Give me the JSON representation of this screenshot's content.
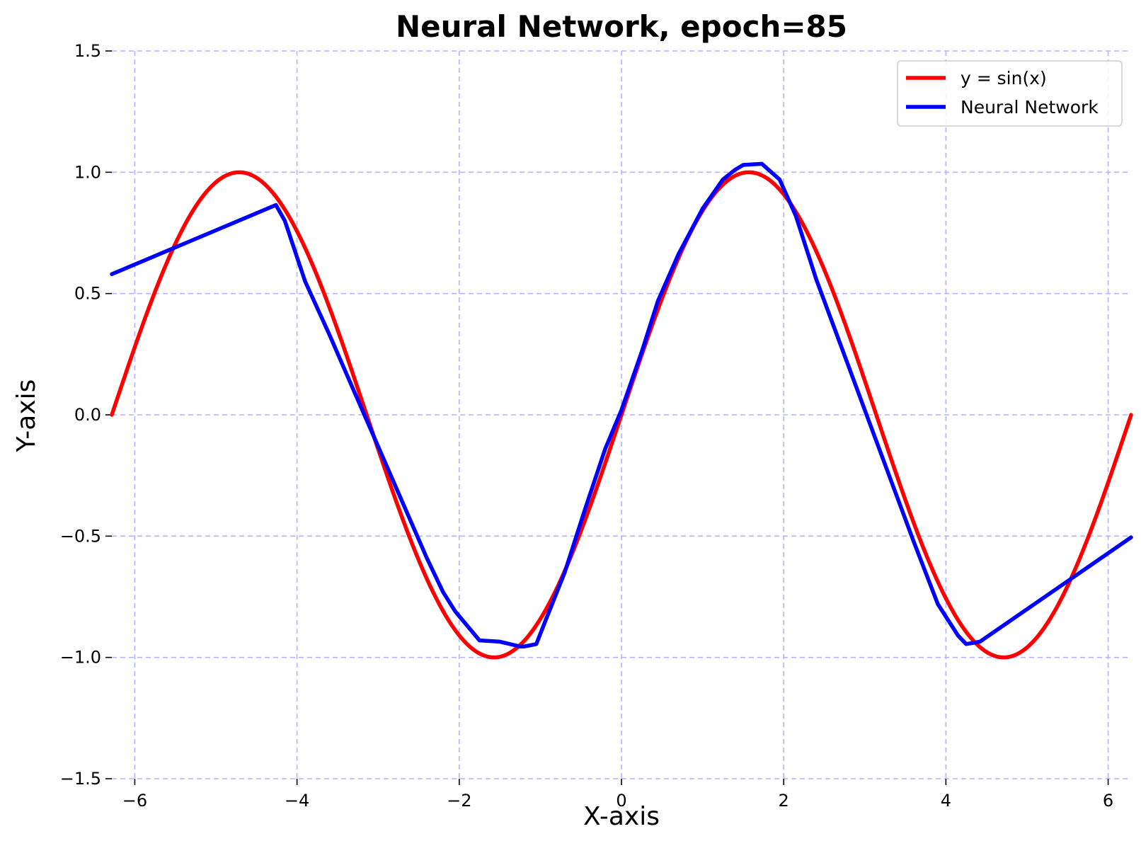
{
  "chart_data": {
    "type": "line",
    "title": "Neural Network, epoch=85",
    "xlabel": "X-axis",
    "ylabel": "Y-axis",
    "xlim": [
      -6.283,
      6.283
    ],
    "ylim": [
      -1.5,
      1.5
    ],
    "xticks": [
      -6,
      -4,
      -2,
      0,
      2,
      4,
      6
    ],
    "xtick_labels": [
      "−6",
      "−4",
      "−2",
      "0",
      "2",
      "4",
      "6"
    ],
    "yticks": [
      -1.5,
      -1.0,
      -0.5,
      0.0,
      0.5,
      1.0,
      1.5
    ],
    "ytick_labels": [
      "−1.5",
      "−1.0",
      "−0.5",
      "0.0",
      "0.5",
      "1.0",
      "1.5"
    ],
    "grid": true,
    "legend_position": "top-right",
    "series": [
      {
        "name": "y = sin(x)",
        "color": "#ff0000",
        "function": "sin"
      },
      {
        "name": "Neural Network",
        "color": "#0000ff",
        "x": [
          -6.283,
          -4.26,
          -4.15,
          -3.9,
          -3.6,
          -3.3,
          -3.0,
          -2.7,
          -2.4,
          -2.2,
          -2.05,
          -1.75,
          -1.5,
          -1.25,
          -1.2,
          -1.05,
          -0.95,
          -0.7,
          -0.45,
          -0.2,
          0.0,
          0.25,
          0.45,
          0.7,
          1.0,
          1.25,
          1.4,
          1.5,
          1.73,
          1.95,
          2.15,
          2.4,
          2.7,
          3.0,
          3.3,
          3.6,
          3.9,
          4.15,
          4.25,
          4.42,
          6.283
        ],
        "y": [
          0.58,
          0.865,
          0.8,
          0.55,
          0.33,
          0.1,
          -0.13,
          -0.36,
          -0.59,
          -0.73,
          -0.81,
          -0.93,
          -0.935,
          -0.955,
          -0.955,
          -0.945,
          -0.86,
          -0.65,
          -0.39,
          -0.14,
          0.02,
          0.26,
          0.47,
          0.66,
          0.85,
          0.97,
          1.01,
          1.03,
          1.035,
          0.97,
          0.82,
          0.56,
          0.29,
          0.02,
          -0.25,
          -0.52,
          -0.78,
          -0.91,
          -0.945,
          -0.935,
          -0.505
        ]
      }
    ]
  }
}
